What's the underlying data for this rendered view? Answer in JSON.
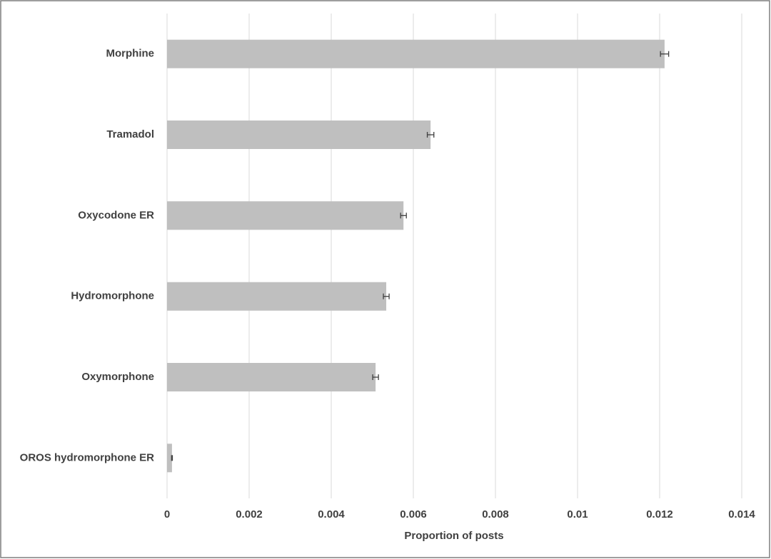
{
  "chart_data": {
    "type": "bar",
    "orientation": "horizontal",
    "x_label": "Proportion of posts",
    "categories": [
      "Morphine",
      "Tramadol",
      "Oxycodone ER",
      "Hydromorphone",
      "Oxymorphone",
      "OROS hydromorphone ER"
    ],
    "values": [
      0.01212,
      0.00642,
      0.00576,
      0.00534,
      0.00508,
      0.00012
    ],
    "errors": [
      0.0001,
      8e-05,
      7e-05,
      7e-05,
      7e-05,
      1e-05
    ],
    "color": "#bfbfbf",
    "error_color": "#404040",
    "xlim": [
      0,
      0.014
    ],
    "xticks": [
      0,
      0.002,
      0.004,
      0.006,
      0.008,
      0.01,
      0.012,
      0.014
    ],
    "grid": true
  }
}
